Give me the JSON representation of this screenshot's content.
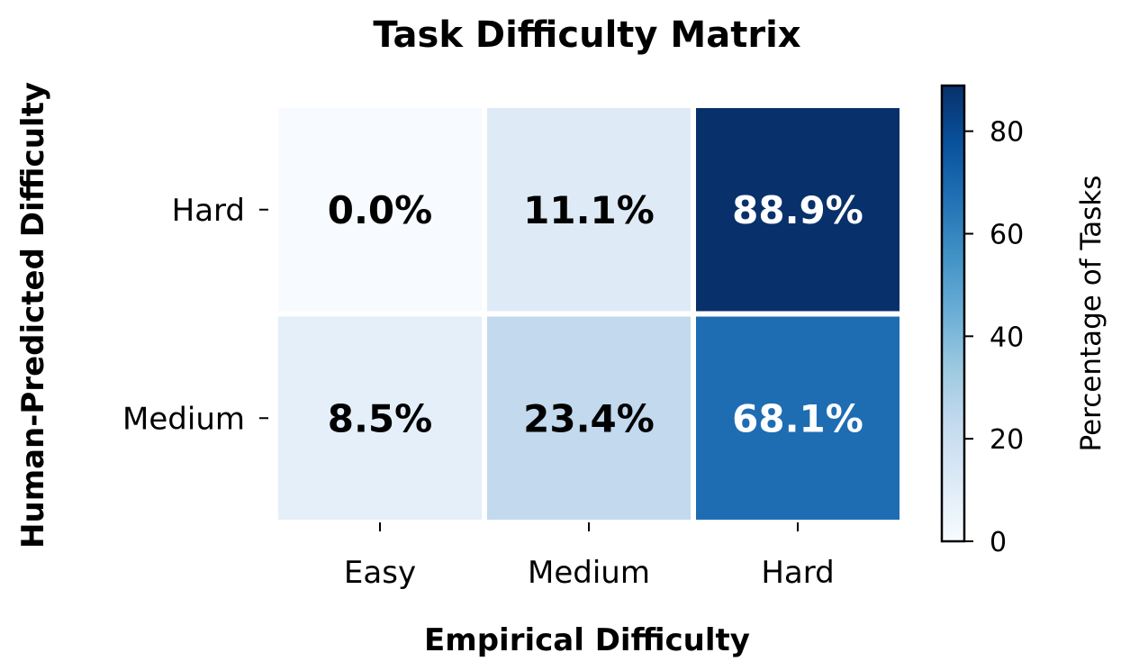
{
  "chart_data": {
    "type": "heatmap",
    "title": "Task Difficulty Matrix",
    "xlabel": "Empirical Difficulty",
    "ylabel": "Human-Predicted Difficulty",
    "x_categories": [
      "Easy",
      "Medium",
      "Hard"
    ],
    "y_categories": [
      "Hard",
      "Medium"
    ],
    "values": [
      [
        0.0,
        11.1,
        88.9
      ],
      [
        8.5,
        23.4,
        68.1
      ]
    ],
    "cell_labels": [
      [
        "0.0%",
        "11.1%",
        "88.9%"
      ],
      [
        "8.5%",
        "23.4%",
        "68.1%"
      ]
    ],
    "colorbar": {
      "label": "Percentage of Tasks",
      "range": [
        0,
        88.9
      ],
      "ticks": [
        0,
        20,
        40,
        60,
        80
      ],
      "tick_labels": [
        "0",
        "20",
        "40",
        "60",
        "80"
      ],
      "colormap": "Blues"
    },
    "grid": false
  }
}
